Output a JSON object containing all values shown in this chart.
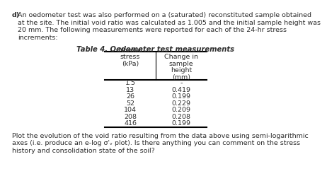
{
  "label": "d)",
  "para1": "An oedometer test was also performed on a (saturated) reconstituted sample obtained",
  "para2": "at the site. The initial void ratio was calculated as 1.005 and the initial sample height was",
  "para3": "20 mm. The following measurements were reported for each of the 24-hr stress",
  "para4": "increments:",
  "table_title": "Table 4. Oedometer test measurements",
  "col1_header_lines": [
    "Normal",
    "stress",
    "(kPa)"
  ],
  "col2_header_lines": [
    "Change in",
    "sample",
    "height",
    "(mm)"
  ],
  "stress": [
    "1.5",
    "13",
    "26",
    "52",
    "104",
    "208",
    "416"
  ],
  "delta_h": [
    "-",
    "0.419",
    "0.199",
    "0.229",
    "0.209",
    "0.208",
    "0.199"
  ],
  "footer1": "Plot the evolution of the void ratio resulting from the data above using semi-logarithmic",
  "footer2": "axes (i.e. produce an e-log σ'ᵥ plot). Is there anything you can comment on the stress",
  "footer3": "history and consolidation state of the soil?",
  "bg_color": "#ffffff",
  "text_color": "#2c2c2c",
  "font_size": 6.8,
  "table_title_size": 7.2
}
